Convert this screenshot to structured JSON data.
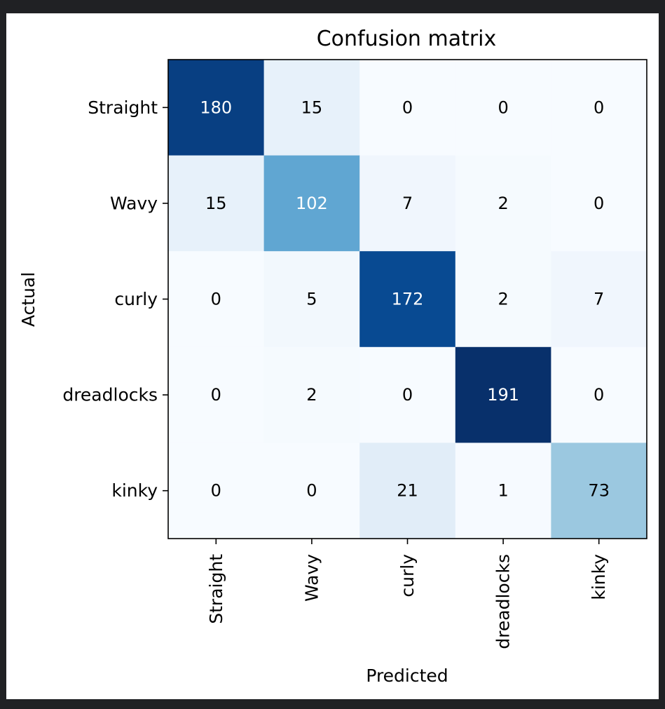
{
  "chart_data": {
    "type": "heatmap",
    "title": "Confusion matrix",
    "xlabel": "Predicted",
    "ylabel": "Actual",
    "x_categories": [
      "Straight",
      "Wavy",
      "curly",
      "dreadlocks",
      "kinky"
    ],
    "y_categories": [
      "Straight",
      "Wavy",
      "curly",
      "dreadlocks",
      "kinky"
    ],
    "values": [
      [
        180,
        15,
        0,
        0,
        0
      ],
      [
        15,
        102,
        7,
        2,
        0
      ],
      [
        0,
        5,
        172,
        2,
        7
      ],
      [
        0,
        2,
        0,
        191,
        0
      ],
      [
        0,
        0,
        21,
        1,
        73
      ]
    ],
    "colormap": "Blues",
    "value_range": [
      0,
      191
    ],
    "grid": false,
    "colorbar": false
  },
  "colors": {
    "page_background": "#202124",
    "figure_background": "#ffffff",
    "axis_color": "#000000",
    "text_dark": "#000000",
    "text_light": "#ffffff"
  }
}
